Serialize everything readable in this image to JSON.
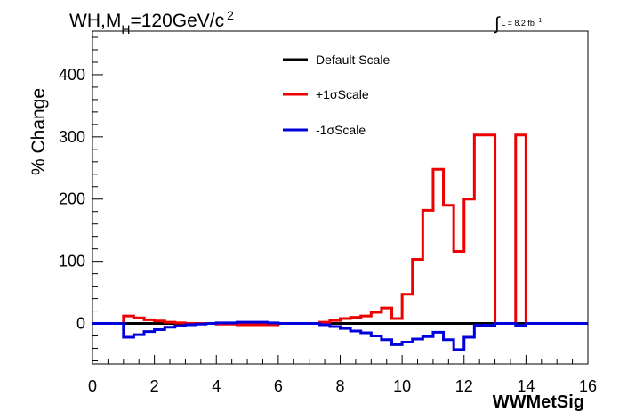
{
  "chart_data": {
    "type": "line",
    "title_parts": [
      "WH,M",
      "H",
      "=120GeV/c",
      "2"
    ],
    "lumi_parts": [
      "∫",
      "L = 8.2 fb",
      "-1"
    ],
    "xlabel": "WWMetSig",
    "ylabel": "% Change",
    "xlim": [
      0,
      16
    ],
    "ylim": [
      -65,
      470
    ],
    "x_ticks": [
      0,
      2,
      4,
      6,
      8,
      10,
      12,
      14,
      16
    ],
    "y_ticks": [
      0,
      100,
      200,
      300,
      400
    ],
    "grid": false,
    "legend_position": "top-center",
    "bin_edges": [
      0.0,
      0.333,
      0.667,
      1.0,
      1.333,
      1.667,
      2.0,
      2.333,
      2.667,
      3.0,
      3.333,
      3.667,
      4.0,
      4.333,
      4.667,
      5.0,
      5.333,
      5.667,
      6.0,
      6.333,
      6.667,
      7.0,
      7.333,
      7.667,
      8.0,
      8.333,
      8.667,
      9.0,
      9.333,
      9.667,
      10.0,
      10.333,
      10.667,
      11.0,
      11.333,
      11.667,
      12.0,
      12.333,
      12.667,
      13.0,
      13.333,
      13.667,
      14.0,
      14.333,
      14.667,
      15.0,
      15.333,
      15.667,
      16.0
    ],
    "series": [
      {
        "name": "Default Scale",
        "color": "#000000",
        "values": [
          0,
          0,
          0,
          0,
          0,
          0,
          0,
          0,
          0,
          0,
          0,
          0,
          0,
          0,
          0,
          0,
          0,
          0,
          0,
          0,
          0,
          0,
          0,
          0,
          0,
          0,
          0,
          0,
          0,
          0,
          0,
          0,
          0,
          0,
          0,
          0,
          0,
          0,
          0,
          0,
          0,
          0,
          0,
          0,
          0,
          0,
          0,
          0
        ]
      },
      {
        "name": "+1σScale",
        "color": "#ee0000",
        "values": [
          0,
          0,
          0,
          12,
          9,
          6,
          4,
          2,
          1,
          0,
          0,
          0,
          -1,
          -1,
          -2,
          -2,
          -2,
          -2,
          0,
          0,
          0,
          0,
          2,
          5,
          8,
          10,
          12,
          18,
          25,
          8,
          47,
          103,
          182,
          248,
          190,
          116,
          200,
          303,
          303,
          0,
          0,
          303,
          0,
          0,
          0,
          0,
          0,
          0
        ]
      },
      {
        "name": "-1σScale",
        "color": "#0000dd",
        "values": [
          0,
          0,
          0,
          -22,
          -18,
          -13,
          -10,
          -6,
          -4,
          -2,
          -1,
          0,
          1,
          1,
          2,
          2,
          2,
          1,
          0,
          0,
          0,
          0,
          -2,
          -5,
          -8,
          -12,
          -15,
          -20,
          -26,
          -34,
          -30,
          -25,
          -21,
          -14,
          -26,
          -42,
          -22,
          -3,
          -3,
          0,
          0,
          -3,
          0,
          0,
          0,
          0,
          0,
          0
        ]
      }
    ]
  }
}
